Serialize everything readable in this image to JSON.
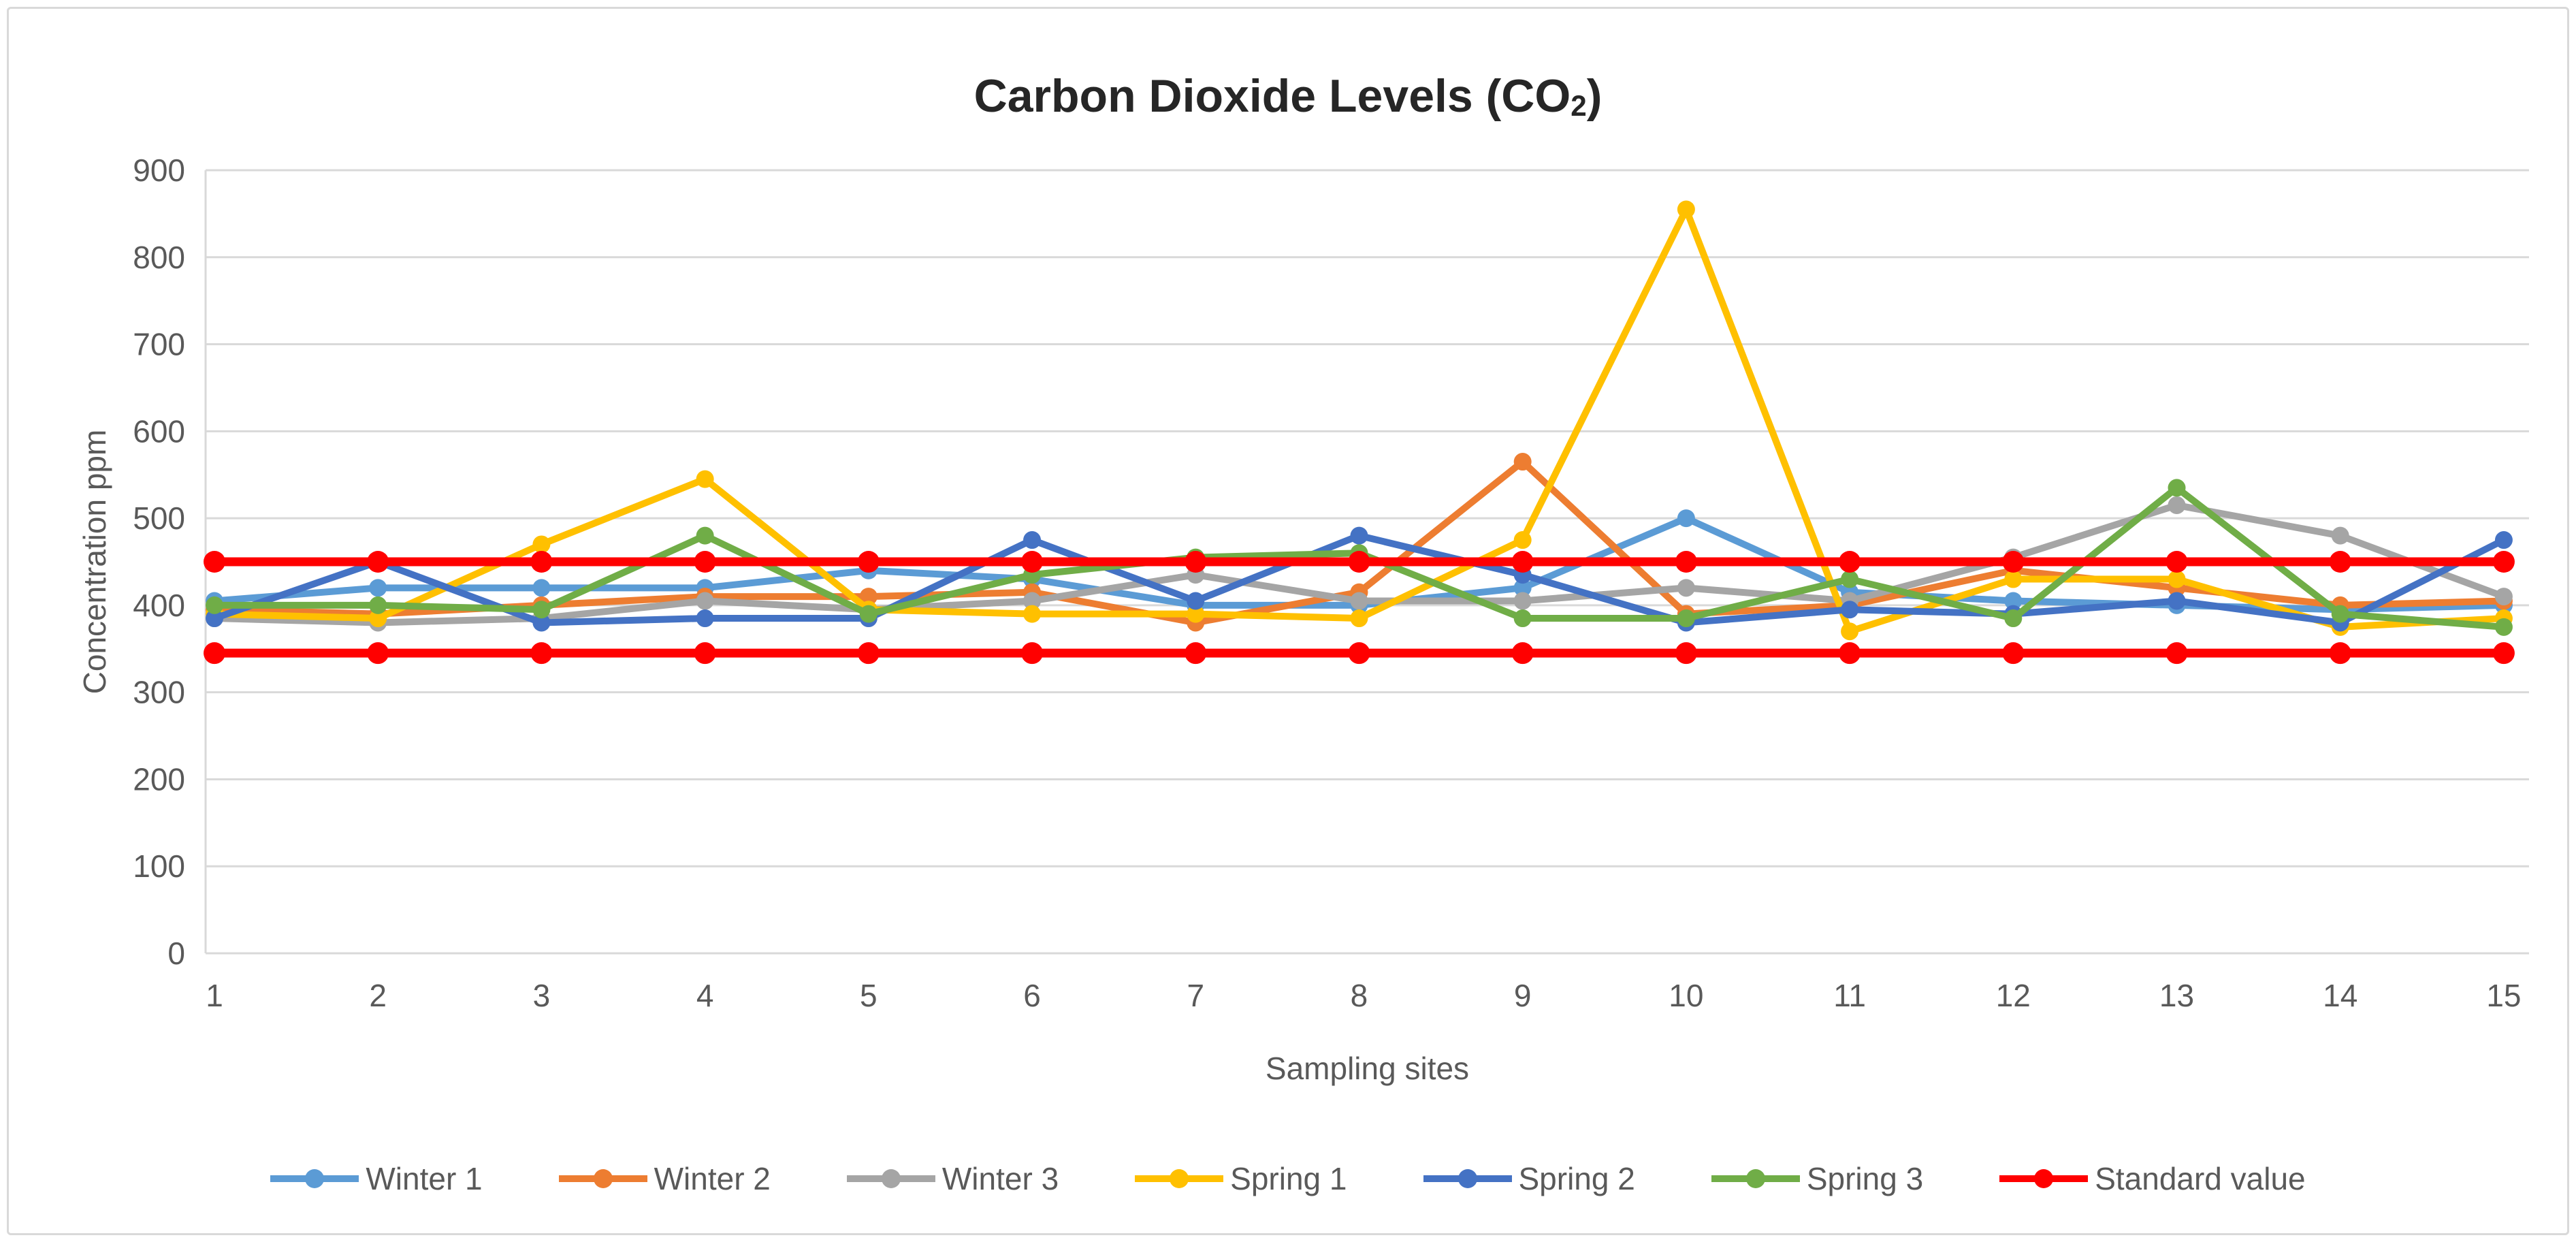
{
  "title": {
    "prefix": "Carbon Dioxide Levels (CO",
    "sub": "2",
    "suffix": ")"
  },
  "legend": [
    {
      "label": "Winter 1",
      "color": "#5B9BD5"
    },
    {
      "label": "Winter 2",
      "color": "#ED7D31"
    },
    {
      "label": "Winter 3",
      "color": "#A5A5A5"
    },
    {
      "label": "Spring 1",
      "color": "#FFC000"
    },
    {
      "label": "Spring 2",
      "color": "#4472C4"
    },
    {
      "label": "Spring 3",
      "color": "#70AD47"
    },
    {
      "label": "Standard value",
      "color": "#FF0000"
    }
  ],
  "colors": {
    "gridline": "#D9D9D9",
    "axis_text": "#595959",
    "title_text": "#262626",
    "standard": "#FF0000"
  },
  "chart_data": {
    "type": "line",
    "title": "Carbon Dioxide Levels (CO2)",
    "xlabel": "Sampling sites",
    "ylabel": "Concentration ppm",
    "ylim": [
      0,
      900
    ],
    "yticks": [
      0,
      100,
      200,
      300,
      400,
      500,
      600,
      700,
      800,
      900
    ],
    "grid": "horizontal",
    "legend_position": "bottom",
    "categories": [
      "1",
      "2",
      "3",
      "4",
      "5",
      "6",
      "7",
      "8",
      "9",
      "10",
      "11",
      "12",
      "13",
      "14",
      "15"
    ],
    "standard_lines": [
      450,
      345
    ],
    "series": [
      {
        "name": "Winter 1",
        "color": "#5B9BD5",
        "role": "data",
        "values": [
          405,
          420,
          420,
          420,
          440,
          430,
          400,
          400,
          420,
          500,
          415,
          405,
          400,
          395,
          400
        ]
      },
      {
        "name": "Winter 2",
        "color": "#ED7D31",
        "role": "data",
        "values": [
          395,
          390,
          400,
          410,
          410,
          415,
          380,
          415,
          565,
          390,
          400,
          440,
          420,
          400,
          405
        ]
      },
      {
        "name": "Winter 3",
        "color": "#A5A5A5",
        "role": "data",
        "values": [
          385,
          380,
          385,
          405,
          395,
          405,
          435,
          405,
          405,
          420,
          405,
          455,
          515,
          480,
          410
        ]
      },
      {
        "name": "Spring 1",
        "color": "#FFC000",
        "role": "data",
        "values": [
          390,
          385,
          470,
          545,
          395,
          390,
          390,
          385,
          475,
          855,
          370,
          430,
          430,
          375,
          385
        ]
      },
      {
        "name": "Spring 2",
        "color": "#4472C4",
        "role": "data",
        "values": [
          385,
          450,
          380,
          385,
          385,
          475,
          405,
          480,
          435,
          380,
          395,
          390,
          405,
          380,
          475
        ]
      },
      {
        "name": "Spring 3",
        "color": "#70AD47",
        "role": "data",
        "values": [
          400,
          400,
          395,
          480,
          390,
          435,
          455,
          460,
          385,
          385,
          430,
          385,
          535,
          390,
          375
        ]
      },
      {
        "name": "Standard value",
        "color": "#FF0000",
        "role": "standard-upper",
        "values": [
          450,
          450,
          450,
          450,
          450,
          450,
          450,
          450,
          450,
          450,
          450,
          450,
          450,
          450,
          450
        ]
      },
      {
        "name": "Standard value",
        "color": "#FF0000",
        "role": "standard-lower",
        "values": [
          345,
          345,
          345,
          345,
          345,
          345,
          345,
          345,
          345,
          345,
          345,
          345,
          345,
          345,
          345
        ]
      }
    ]
  }
}
